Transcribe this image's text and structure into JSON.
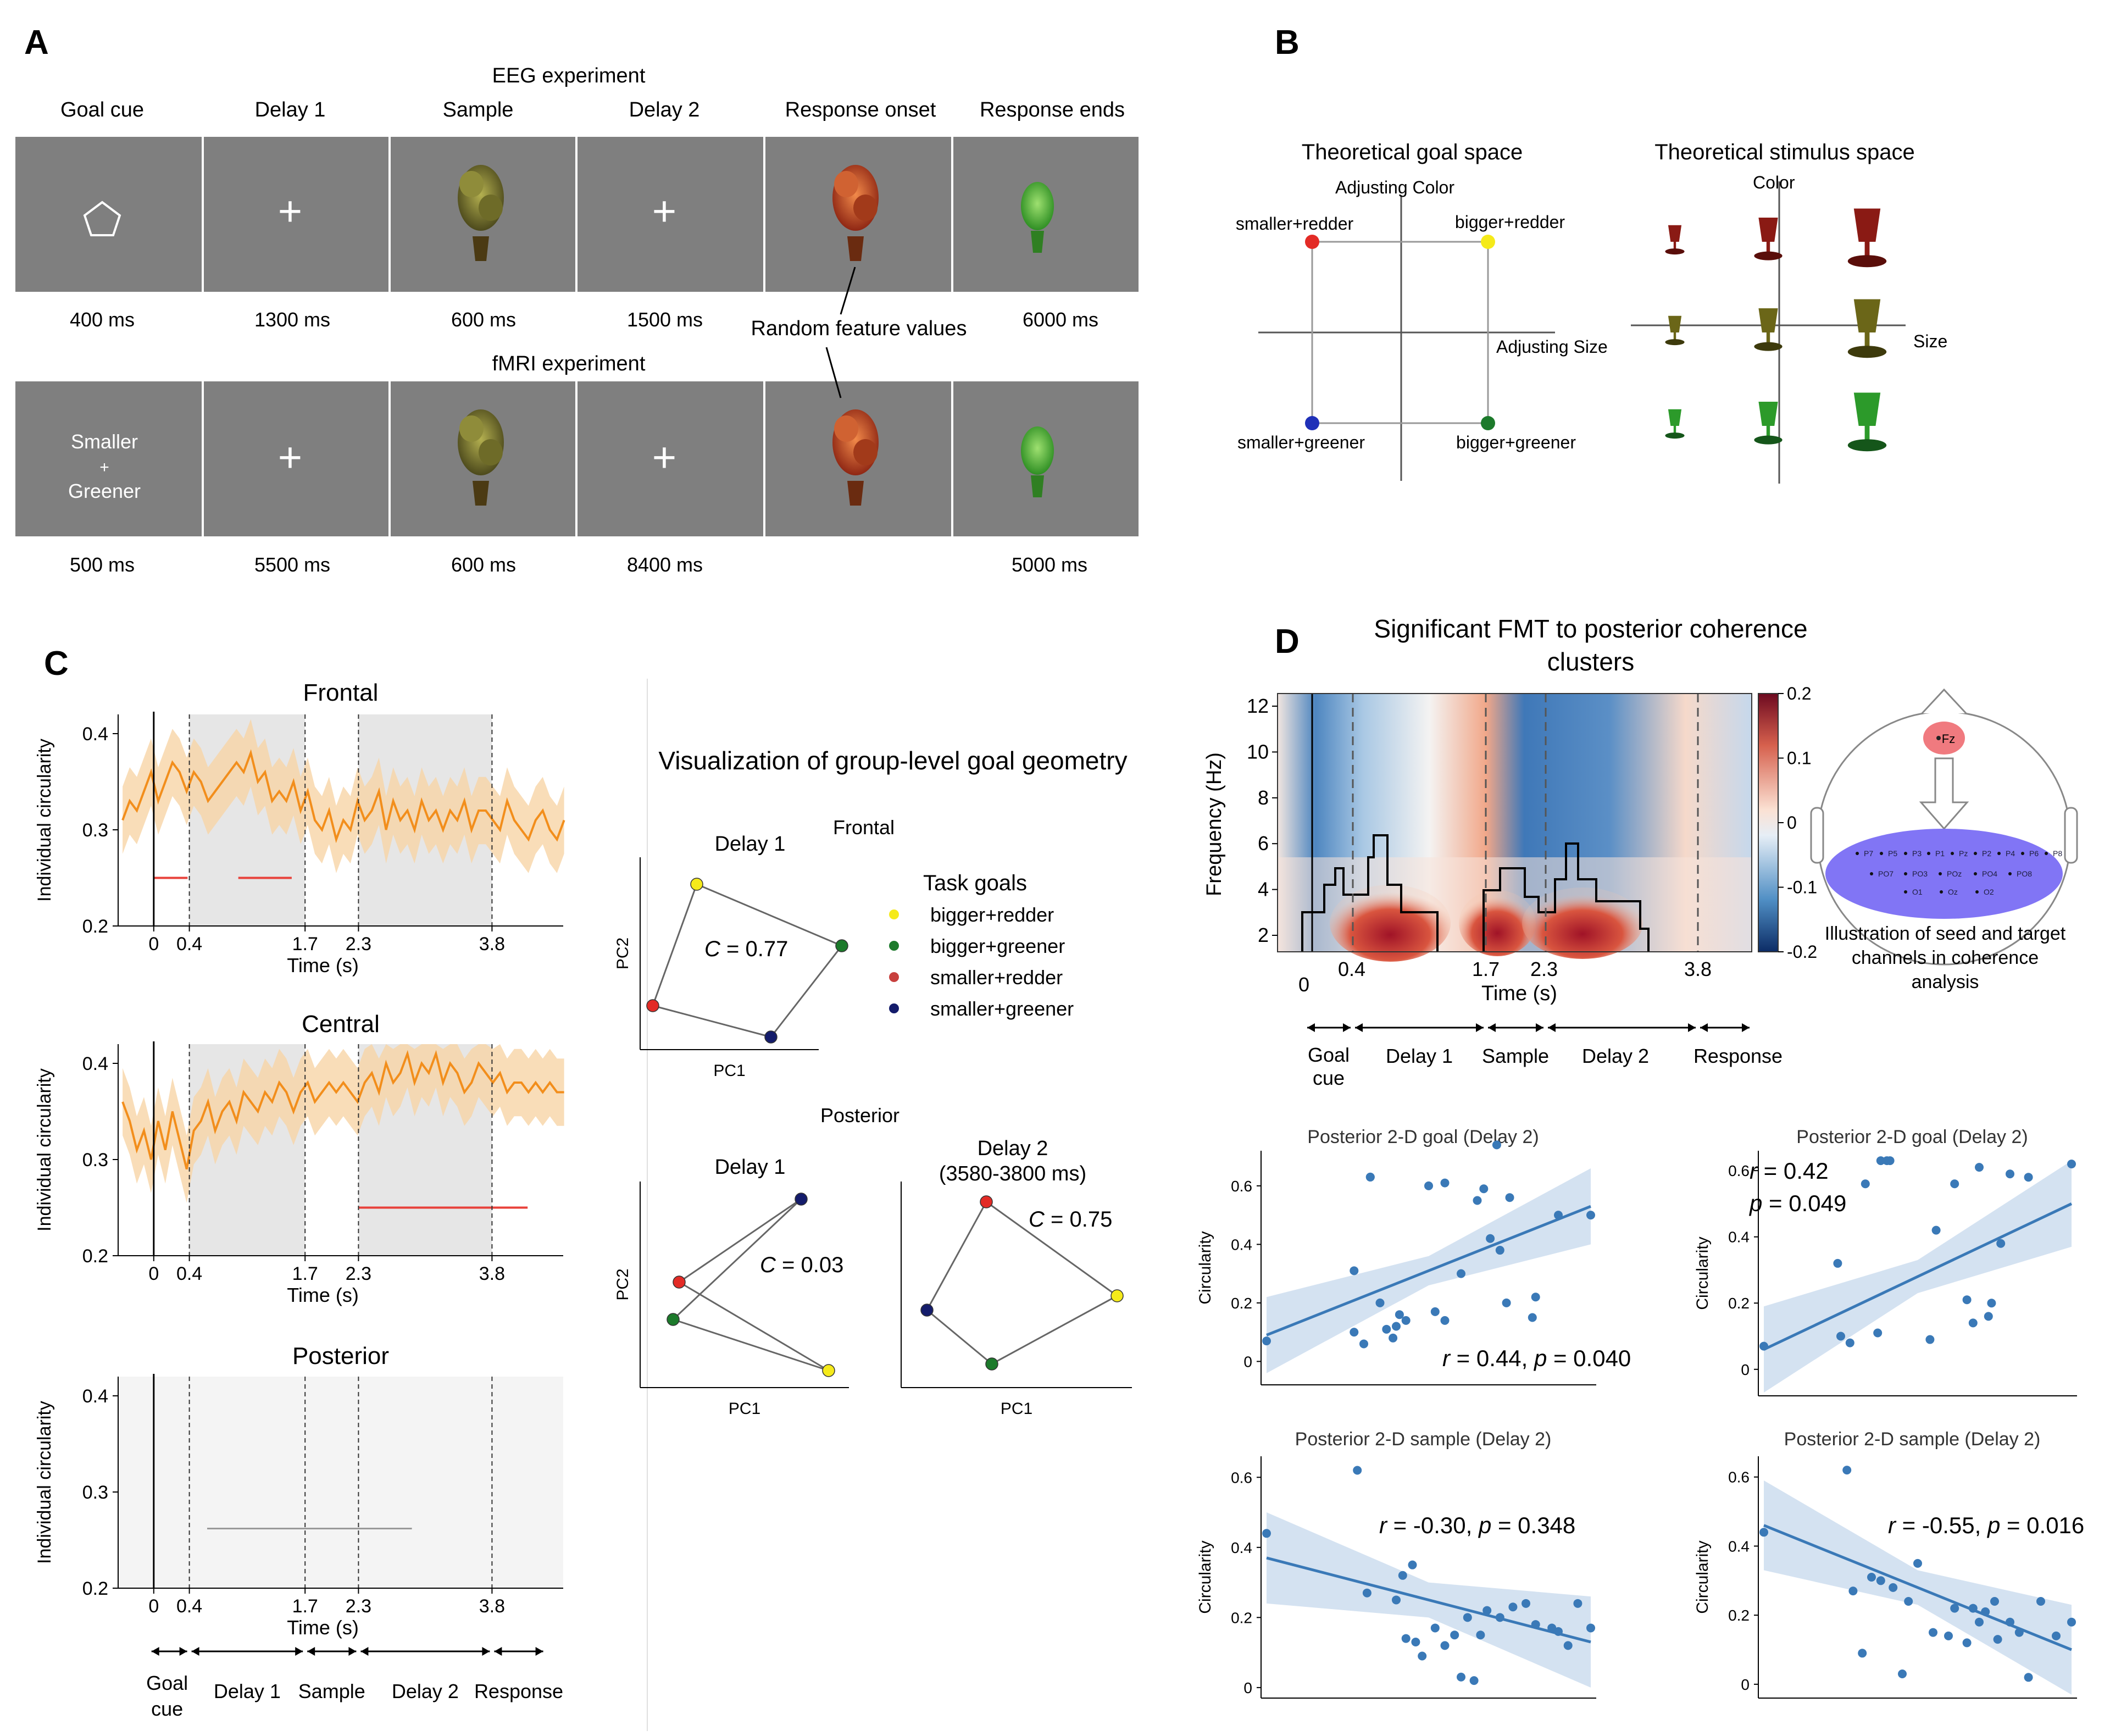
{
  "panel_letters": {
    "a": "A",
    "b": "B",
    "c": "C",
    "d": "D"
  },
  "colors": {
    "screen_gray": "#7f7f7f",
    "orange": "#f28e1c",
    "orange_band": "#f8d5a6",
    "red_sig": "#e8423b",
    "blue_reg": "#3a79b7",
    "blue_band": "#cfdff0",
    "goal_red": "#e32b26",
    "goal_yellow": "#f5ea1a",
    "goal_green": "#1c7a2b",
    "goal_blue": "#1f30b8",
    "goal_navy": "#141c6b",
    "goal_brick": "#c8403e"
  },
  "panelA": {
    "eeg_title": "EEG experiment",
    "fmri_title": "fMRI experiment",
    "headers": [
      "Goal cue",
      "Delay 1",
      "Sample",
      "Delay 2",
      "Response onset",
      "Response ends"
    ],
    "eeg_durations": [
      "400 ms",
      "1300 ms",
      "600 ms",
      "1500 ms",
      "6000 ms"
    ],
    "fmri_durations": [
      "500 ms",
      "5500 ms",
      "600 ms",
      "8400 ms",
      "5000 ms"
    ],
    "random_label": "Random feature values",
    "fmri_cue": [
      "Smaller",
      "+",
      "Greener"
    ],
    "fixation": "+"
  },
  "panelB": {
    "goal_title": "Theoretical goal space",
    "stim_title": "Theoretical stimulus space",
    "adj_color": "Adjusting Color",
    "adj_size": "Adjusting Size",
    "corners": [
      "smaller+redder",
      "bigger+redder",
      "smaller+greener",
      "bigger+greener"
    ],
    "stim_color_axis": "Color",
    "stim_size_axis": "Size"
  },
  "panelC": {
    "ylabel": "Individual circularity",
    "xlabel": "Time (s)",
    "xticks": [
      "0",
      "0.4",
      "1.7",
      "2.3",
      "3.8"
    ],
    "yticks": [
      "0.2",
      "0.3",
      "0.4"
    ],
    "phases": [
      "Goal",
      "cue",
      "Delay 1",
      "Sample",
      "Delay 2",
      "Response"
    ],
    "geo_title": "Visualization of group-level goal geometry",
    "frontal_label": "Frontal",
    "posterior_label": "Posterior",
    "delay1": "Delay 1",
    "delay2": "Delay 2",
    "delay2_window": "(3580-3800 ms)",
    "pc1": "PC1",
    "pc2": "PC2",
    "c_frontal": "= 0.77",
    "c_post_d1": "= 0.03",
    "c_post_d2": "= 0.75",
    "c_symbol": "C",
    "legend_title": "Task goals",
    "legend": [
      "bigger+redder",
      "bigger+greener",
      "smaller+redder",
      "smaller+greener"
    ]
  },
  "panelD": {
    "title_line1": "Significant FMT to posterior coherence",
    "title_line2": "clusters",
    "ylabel": "Frequency (Hz)",
    "xlabel": "Time (s)",
    "yticks": [
      "12",
      "10",
      "8",
      "6",
      "4",
      "2"
    ],
    "xticks": [
      "0",
      "0.4",
      "1.7",
      "2.3",
      "3.8"
    ],
    "cbar_ticks": [
      "0.2",
      "0.1",
      "0",
      "-0.1",
      "-0.2"
    ],
    "phases": [
      "Goal",
      "cue",
      "Delay 1",
      "Sample",
      "Delay 2",
      "Response"
    ],
    "seed": "Fz",
    "channels_row1": [
      "P7",
      "P5",
      "P3",
      "P1",
      "Pz",
      "P2",
      "P4",
      "P6",
      "P8"
    ],
    "channels_row2": [
      "PO7",
      "PO3",
      "POz",
      "PO4",
      "PO8"
    ],
    "channels_row3": [
      "O1",
      "Oz",
      "O2"
    ],
    "illustration_caption": [
      "Illustration of seed and target",
      "channels in coherence",
      "analysis"
    ],
    "scatter_ylabel": "Circularity",
    "yticks_scatter": [
      "0.6",
      "0.4",
      "0.2",
      "0"
    ]
  },
  "chart_data": [
    {
      "type": "line",
      "title": "Frontal",
      "xlabel": "Time (s)",
      "ylabel": "Individual circularity",
      "xlim": [
        -0.4,
        4.6
      ],
      "ylim": [
        0.2,
        0.42
      ],
      "x_start": -0.35,
      "x_step": 0.08,
      "series": [
        {
          "name": "mean",
          "values": [
            0.31,
            0.33,
            0.32,
            0.34,
            0.36,
            0.33,
            0.35,
            0.37,
            0.36,
            0.34,
            0.36,
            0.35,
            0.33,
            0.34,
            0.35,
            0.36,
            0.37,
            0.36,
            0.38,
            0.35,
            0.36,
            0.33,
            0.34,
            0.33,
            0.35,
            0.32,
            0.34,
            0.31,
            0.3,
            0.32,
            0.29,
            0.31,
            0.3,
            0.33,
            0.31,
            0.32,
            0.34,
            0.3,
            0.33,
            0.31,
            0.32,
            0.3,
            0.33,
            0.31,
            0.32,
            0.3,
            0.32,
            0.31,
            0.33,
            0.3,
            0.32,
            0.32,
            0.31,
            0.3,
            0.33,
            0.31,
            0.3,
            0.29,
            0.31,
            0.32,
            0.3,
            0.29,
            0.31
          ]
        }
      ],
      "band_halfwidth": 0.035,
      "significance": [
        [
          0.0,
          0.38
        ],
        [
          0.95,
          1.55
        ]
      ],
      "sig_y": 0.25,
      "shaded": [
        [
          0.4,
          1.7
        ],
        [
          2.3,
          3.8
        ]
      ]
    },
    {
      "type": "line",
      "title": "Central",
      "xlabel": "Time (s)",
      "ylabel": "Individual circularity",
      "xlim": [
        -0.4,
        4.6
      ],
      "ylim": [
        0.2,
        0.42
      ],
      "x_start": -0.35,
      "x_step": 0.08,
      "series": [
        {
          "name": "mean",
          "values": [
            0.36,
            0.34,
            0.31,
            0.33,
            0.3,
            0.34,
            0.31,
            0.35,
            0.32,
            0.29,
            0.33,
            0.34,
            0.36,
            0.33,
            0.35,
            0.36,
            0.34,
            0.37,
            0.36,
            0.35,
            0.37,
            0.36,
            0.38,
            0.37,
            0.35,
            0.37,
            0.38,
            0.36,
            0.37,
            0.38,
            0.37,
            0.38,
            0.37,
            0.36,
            0.38,
            0.39,
            0.37,
            0.4,
            0.38,
            0.39,
            0.41,
            0.38,
            0.4,
            0.39,
            0.41,
            0.38,
            0.4,
            0.39,
            0.37,
            0.38,
            0.4,
            0.39,
            0.38,
            0.39,
            0.37,
            0.38,
            0.38,
            0.37,
            0.38,
            0.37,
            0.38,
            0.37,
            0.37
          ]
        }
      ],
      "band_halfwidth": 0.035,
      "significance": [
        [
          2.3,
          4.2
        ]
      ],
      "sig_y": 0.25,
      "shaded": [
        [
          0.4,
          1.7
        ],
        [
          2.3,
          3.8
        ]
      ]
    },
    {
      "type": "line",
      "title": "Posterior",
      "xlabel": "Time (s)",
      "ylabel": "Individual circularity",
      "xlim": [
        -0.4,
        4.6
      ],
      "ylim": [
        0.2,
        0.42
      ],
      "series": [],
      "shaded": [
        [
          0.4,
          1.7
        ],
        [
          2.3,
          3.8
        ]
      ]
    },
    {
      "type": "scatter",
      "title": "Posterior 2-D goal (Delay 2)",
      "xlabel": "",
      "ylabel": "Circularity",
      "xlim": [
        0,
        1
      ],
      "ylim": [
        -0.08,
        0.72
      ],
      "x": [
        0.0,
        0.27,
        0.27,
        0.32,
        0.3,
        0.32,
        0.35,
        0.37,
        0.39,
        0.4,
        0.41,
        0.43,
        0.5,
        0.52,
        0.55,
        0.55,
        0.6,
        0.65,
        0.67,
        0.69,
        0.71,
        0.72,
        0.74,
        0.75,
        0.82,
        0.83,
        0.9,
        1.0
      ],
      "y": [
        0.07,
        0.31,
        0.1,
        0.63,
        0.06,
        0.63,
        0.2,
        0.11,
        0.08,
        0.12,
        0.16,
        0.14,
        0.6,
        0.17,
        0.61,
        0.14,
        0.3,
        0.55,
        0.59,
        0.42,
        0.74,
        0.38,
        0.2,
        0.56,
        0.15,
        0.22,
        0.5,
        0.5
      ],
      "regression": {
        "x": [
          0.0,
          1.0
        ],
        "y": [
          0.09,
          0.53
        ]
      },
      "annotation": "r = 0.44, p = 0.040"
    },
    {
      "type": "scatter",
      "title": "Posterior 2-D goal (Delay 2)",
      "xlabel": "",
      "ylabel": "Circularity",
      "xlim": [
        0,
        1
      ],
      "ylim": [
        -0.08,
        0.66
      ],
      "x": [
        0.0,
        0.24,
        0.25,
        0.28,
        0.33,
        0.37,
        0.38,
        0.4,
        0.41,
        0.54,
        0.56,
        0.62,
        0.66,
        0.68,
        0.7,
        0.73,
        0.74,
        0.77,
        0.8,
        0.86,
        1.0
      ],
      "y": [
        0.07,
        0.32,
        0.1,
        0.08,
        0.56,
        0.11,
        0.63,
        0.63,
        0.63,
        0.09,
        0.42,
        0.56,
        0.21,
        0.14,
        0.61,
        0.16,
        0.2,
        0.38,
        0.59,
        0.58,
        0.62
      ],
      "regression": {
        "x": [
          0.0,
          1.0
        ],
        "y": [
          0.06,
          0.5
        ]
      },
      "annotation_line1": "r = 0.42",
      "annotation_line2": "p = 0.049"
    },
    {
      "type": "scatter",
      "title": "Posterior 2-D sample (Delay 2)",
      "xlabel": "",
      "ylabel": "Circularity",
      "xlim": [
        0,
        1
      ],
      "ylim": [
        -0.03,
        0.66
      ],
      "x": [
        0.0,
        0.28,
        0.31,
        0.4,
        0.42,
        0.43,
        0.45,
        0.46,
        0.48,
        0.52,
        0.55,
        0.58,
        0.6,
        0.62,
        0.64,
        0.66,
        0.68,
        0.72,
        0.76,
        0.8,
        0.83,
        0.88,
        0.9,
        0.93,
        0.96,
        1.0
      ],
      "y": [
        0.44,
        0.62,
        0.27,
        0.25,
        0.32,
        0.14,
        0.35,
        0.13,
        0.09,
        0.17,
        0.12,
        0.15,
        0.03,
        0.2,
        0.02,
        0.15,
        0.22,
        0.2,
        0.23,
        0.24,
        0.18,
        0.17,
        0.16,
        0.12,
        0.24,
        0.17
      ],
      "regression": {
        "x": [
          0.0,
          1.0
        ],
        "y": [
          0.37,
          0.13
        ]
      },
      "annotation": "r = -0.30, p = 0.348"
    },
    {
      "type": "scatter",
      "title": "Posterior 2-D sample (Delay 2)",
      "xlabel": "",
      "ylabel": "Circularity",
      "xlim": [
        0,
        1
      ],
      "ylim": [
        -0.04,
        0.66
      ],
      "x": [
        0.0,
        0.27,
        0.29,
        0.32,
        0.35,
        0.38,
        0.42,
        0.45,
        0.47,
        0.5,
        0.55,
        0.6,
        0.62,
        0.66,
        0.68,
        0.7,
        0.72,
        0.75,
        0.76,
        0.8,
        0.83,
        0.86,
        0.9,
        0.95,
        1.0
      ],
      "y": [
        0.44,
        0.62,
        0.27,
        0.09,
        0.31,
        0.3,
        0.28,
        0.03,
        0.24,
        0.35,
        0.15,
        0.14,
        0.22,
        0.12,
        0.22,
        0.18,
        0.21,
        0.24,
        0.13,
        0.18,
        0.15,
        0.02,
        0.24,
        0.14,
        0.18
      ],
      "regression": {
        "x": [
          0.0,
          1.0
        ],
        "y": [
          0.46,
          0.1
        ]
      },
      "annotation": "r = -0.55, p = 0.016"
    }
  ]
}
